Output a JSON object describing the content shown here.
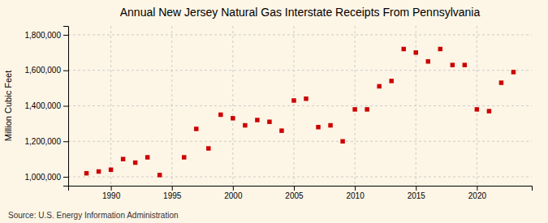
{
  "chart_data": {
    "type": "scatter",
    "title": "Annual New Jersey Natural Gas Interstate Receipts From Pennsylvania",
    "ylabel": "Million Cubic Feet",
    "annotations": [
      "Source: U.S. Energy Information Administration"
    ],
    "x": [
      1988,
      1989,
      1990,
      1991,
      1992,
      1993,
      1994,
      1996,
      1997,
      1998,
      1999,
      2000,
      2001,
      2002,
      2003,
      2004,
      2005,
      2006,
      2007,
      2008,
      2009,
      2010,
      2011,
      2012,
      2013,
      2014,
      2015,
      2016,
      2017,
      2018,
      2019,
      2020,
      2021,
      2022,
      2023
    ],
    "values": [
      1020000,
      1030000,
      1040000,
      1100000,
      1080000,
      1110000,
      1010000,
      1110000,
      1270000,
      1160000,
      1350000,
      1330000,
      1290000,
      1320000,
      1310000,
      1260000,
      1430000,
      1440000,
      1280000,
      1290000,
      1200000,
      1380000,
      1380000,
      1510000,
      1540000,
      1720000,
      1700000,
      1650000,
      1720000,
      1630000,
      1630000,
      1380000,
      1370000,
      1530000,
      1590000
    ],
    "color": "#cc0000",
    "marker": "square",
    "xlim": [
      1986.5,
      2024.5
    ],
    "xticks": [
      1990,
      1995,
      2000,
      2005,
      2010,
      2015,
      2020
    ],
    "ylim": [
      950000,
      1850000
    ],
    "yticks": [
      {
        "value": 1000000,
        "label": "1,000,000"
      },
      {
        "value": 1200000,
        "label": "1,200,000"
      },
      {
        "value": 1400000,
        "label": "1,400,000"
      },
      {
        "value": 1600000,
        "label": "1,600,000"
      },
      {
        "value": 1800000,
        "label": "1,800,000"
      }
    ],
    "grid": true
  }
}
